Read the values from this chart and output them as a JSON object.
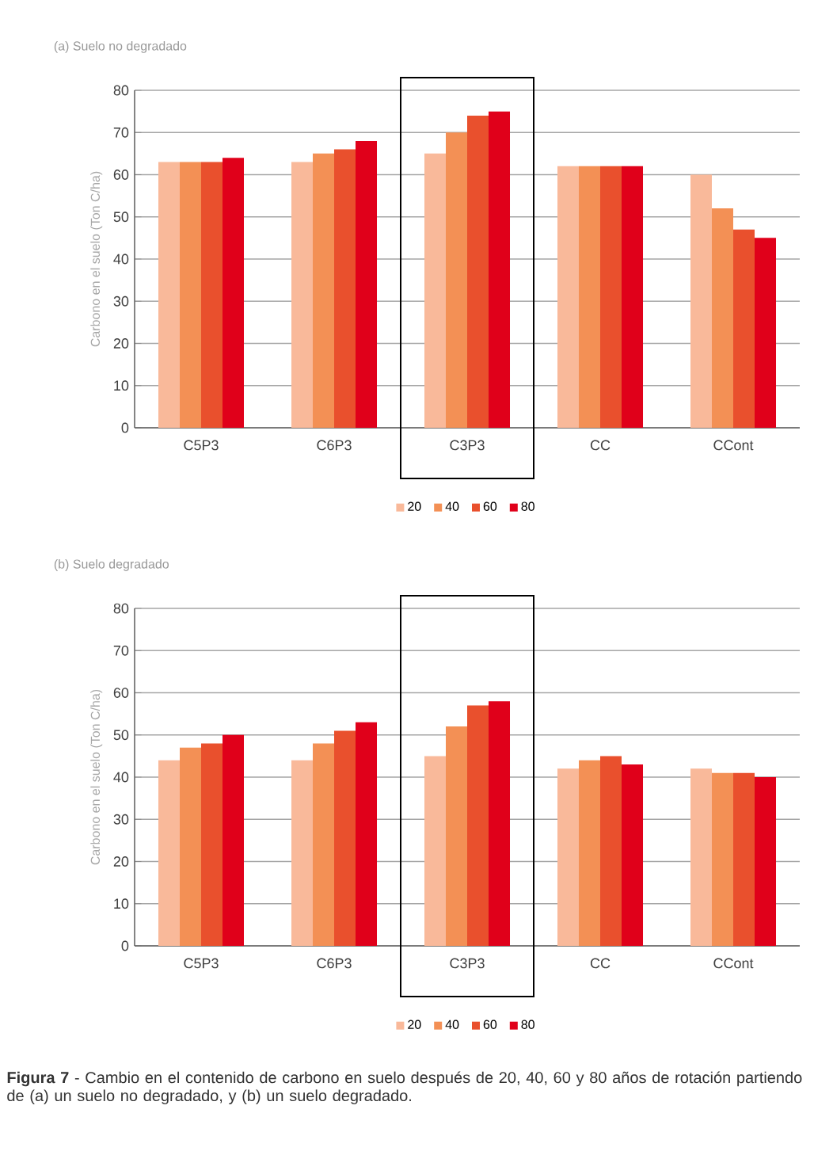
{
  "chart_data": [
    {
      "type": "bar",
      "title": "(a) Suelo no degradado",
      "ylabel": "Carbono en el suelo (Ton C/ha)",
      "categories": [
        "C5P3",
        "C6P3",
        "C3P3",
        "CC",
        "CCont"
      ],
      "series": [
        {
          "name": "20",
          "color": "#f9b99a",
          "values": [
            63,
            63,
            65,
            62,
            60
          ]
        },
        {
          "name": "40",
          "color": "#f39055",
          "values": [
            63,
            65,
            70,
            62,
            52
          ]
        },
        {
          "name": "60",
          "color": "#e9502d",
          "values": [
            63,
            66,
            74,
            62,
            47
          ]
        },
        {
          "name": "80",
          "color": "#e0001a",
          "values": [
            64,
            68,
            75,
            62,
            45
          ]
        }
      ],
      "ylim": [
        0,
        80
      ],
      "yticks": [
        0,
        10,
        20,
        30,
        40,
        50,
        60,
        70,
        80
      ],
      "grid": "y",
      "legend": "bottom"
    },
    {
      "type": "bar",
      "title": "(b) Suelo degradado",
      "ylabel": "Carbono en el suelo (Ton C/ha)",
      "categories": [
        "C5P3",
        "C6P3",
        "C3P3",
        "CC",
        "CCont"
      ],
      "series": [
        {
          "name": "20",
          "color": "#f9b99a",
          "values": [
            44,
            44,
            45,
            42,
            42
          ]
        },
        {
          "name": "40",
          "color": "#f39055",
          "values": [
            47,
            48,
            52,
            44,
            41
          ]
        },
        {
          "name": "60",
          "color": "#e9502d",
          "values": [
            48,
            51,
            57,
            45,
            41
          ]
        },
        {
          "name": "80",
          "color": "#e0001a",
          "values": [
            50,
            53,
            58,
            43,
            40
          ]
        }
      ],
      "ylim": [
        0,
        80
      ],
      "yticks": [
        0,
        10,
        20,
        30,
        40,
        50,
        60,
        70,
        80
      ],
      "grid": "y",
      "legend": "bottom",
      "annotations": [
        "**Figura 7** - Cambio en el contenido de carbono en suelo después de 20, 40, 60 y 80 años de rotación partiendo de (a) un suelo no degradado, y (b) un suelo degradado."
      ]
    }
  ]
}
